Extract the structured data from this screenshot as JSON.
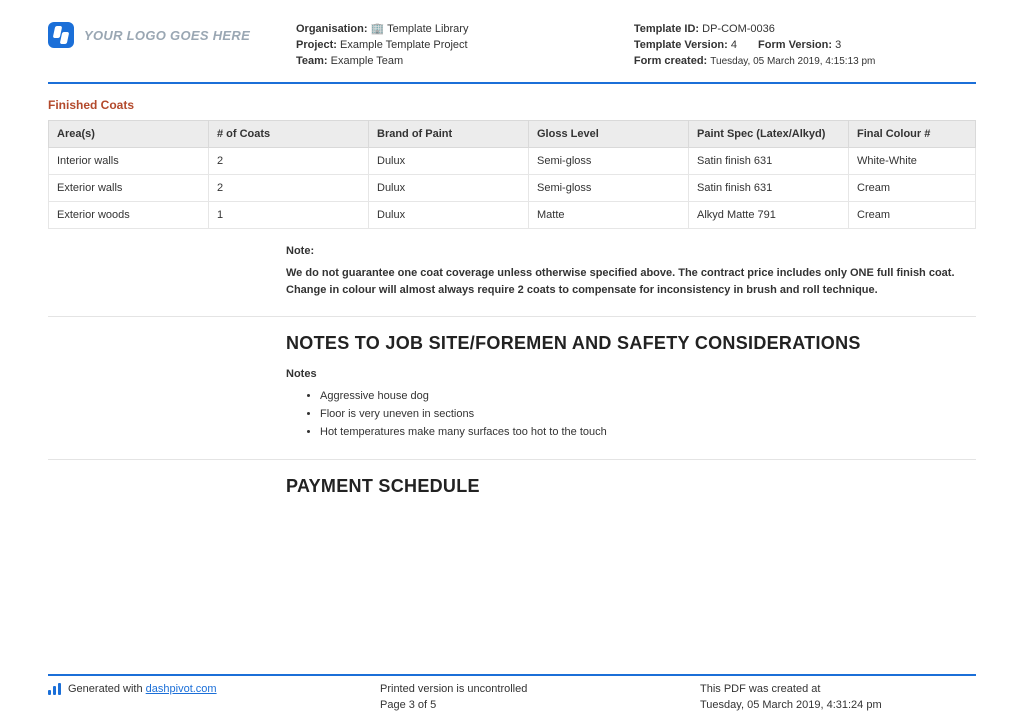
{
  "header": {
    "logo_text": "YOUR LOGO GOES HERE",
    "left": {
      "org_label": "Organisation:",
      "org_value": "🏢 Template Library",
      "project_label": "Project:",
      "project_value": "Example Template Project",
      "team_label": "Team:",
      "team_value": "Example Team"
    },
    "right": {
      "tid_label": "Template ID:",
      "tid_value": "DP-COM-0036",
      "tver_label": "Template Version:",
      "tver_value": "4",
      "fver_label": "Form Version:",
      "fver_value": "3",
      "created_label": "Form created:",
      "created_value": "Tuesday, 05 March 2019, 4:15:13 pm"
    }
  },
  "finished_coats": {
    "title": "Finished Coats",
    "columns": [
      "Area(s)",
      "# of Coats",
      "Brand of Paint",
      "Gloss Level",
      "Paint Spec (Latex/Alkyd)",
      "Final Colour #"
    ],
    "rows": [
      [
        "Interior walls",
        "2",
        "Dulux",
        "Semi-gloss",
        "Satin finish 631",
        "White-White"
      ],
      [
        "Exterior walls",
        "2",
        "Dulux",
        "Semi-gloss",
        "Satin finish 631",
        "Cream"
      ],
      [
        "Exterior woods",
        "1",
        "Dulux",
        "Matte",
        "Alkyd Matte 791",
        "Cream"
      ]
    ],
    "col_widths": [
      "160px",
      "160px",
      "160px",
      "160px",
      "160px",
      "auto"
    ]
  },
  "note": {
    "label": "Note:",
    "body": "We do not guarantee one coat coverage unless otherwise specified above. The contract price includes only ONE full finish coat. Change in colour will almost always require 2 coats to compensate for inconsistency in brush and roll technique."
  },
  "sections": {
    "jobsite_heading": "NOTES TO JOB SITE/FOREMEN AND SAFETY CONSIDERATIONS",
    "notes_label": "Notes",
    "notes_items": [
      "Aggressive house dog",
      "Floor is very uneven in sections",
      "Hot temperatures make many surfaces too hot to the touch"
    ],
    "payment_heading": "PAYMENT SCHEDULE"
  },
  "footer": {
    "gen_prefix": "Generated with ",
    "gen_link": "dashpivot.com",
    "mid_line1": "Printed version is uncontrolled",
    "mid_line2": "Page 3 of 5",
    "right_line1": "This PDF was created at",
    "right_line2": "Tuesday, 05 March 2019, 4:31:24 pm"
  },
  "colors": {
    "accent": "#1b6fd8",
    "subtitle": "#b3492b",
    "header_bg": "#ececec",
    "border": "#e6e6e6"
  }
}
